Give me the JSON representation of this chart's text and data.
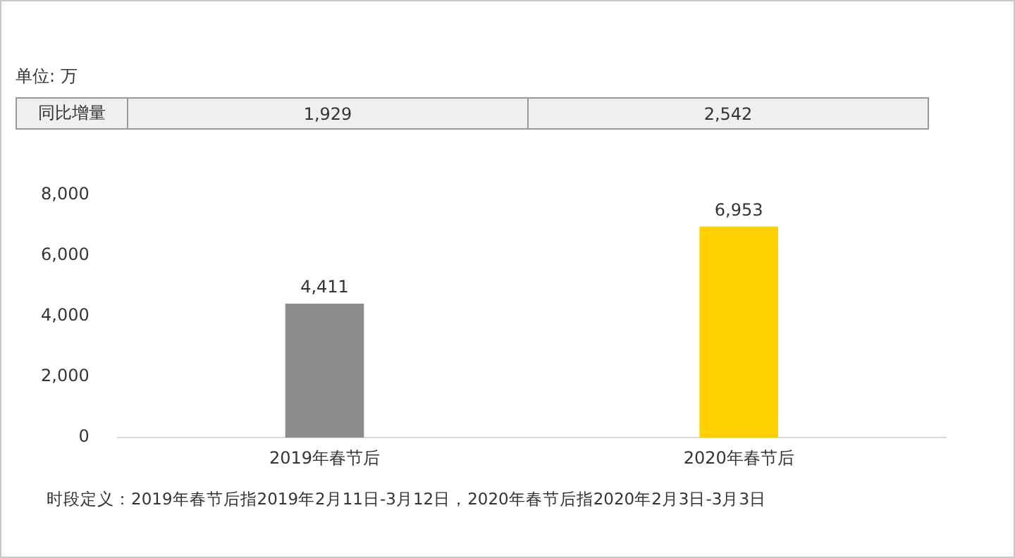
{
  "chart_data": {
    "type": "bar",
    "categories": [
      "2019年春节后",
      "2020年春节后"
    ],
    "values": [
      4411,
      6953
    ],
    "colors": [
      "#8c8c8c",
      "#ffd000"
    ],
    "value_labels": [
      "4,411",
      "6,953"
    ],
    "ylim": [
      0,
      8000
    ],
    "yticks": [
      0,
      {
        "value": 2000,
        "label": "2,000"
      },
      {
        "value": 4000,
        "label": "4,000"
      },
      {
        "value": 6000,
        "label": "6,000"
      },
      {
        "value": 8000,
        "label": "8,000"
      }
    ],
    "grid": false,
    "legend": false,
    "annotations": [
      "单位: 万",
      "同比增量",
      "1,929",
      "2,542",
      "时段定义：2019年春节后指2019年2月11日-3月12日，2020年春节后指2020年2月3日-3月3日"
    ]
  }
}
